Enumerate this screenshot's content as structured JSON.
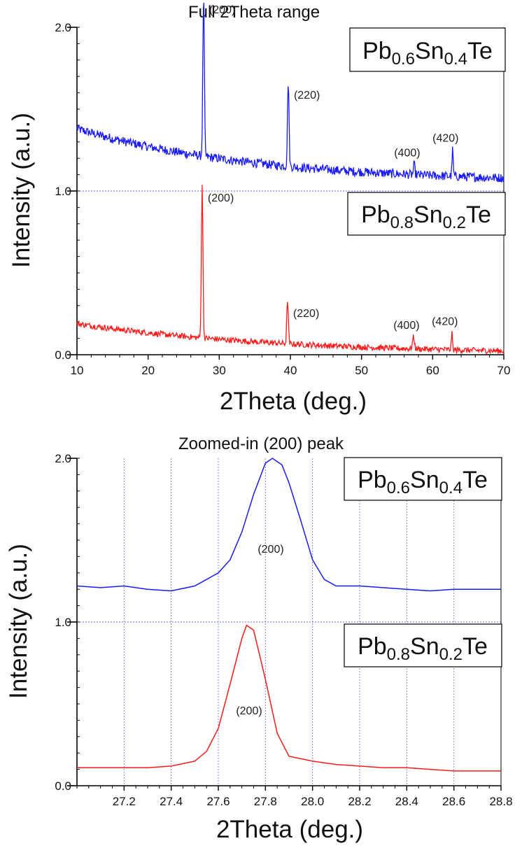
{
  "chart_data": [
    {
      "type": "line",
      "title": "Full 2Theta range",
      "xlabel": "2Theta (deg.)",
      "ylabel": "Intensity (a.u.)",
      "xlim": [
        10,
        70
      ],
      "ylim": [
        0,
        2
      ],
      "xticks": [
        "10",
        "20",
        "30",
        "40",
        "50",
        "60",
        "70"
      ],
      "yticks": [
        "0.0",
        "1.0",
        "2.0"
      ],
      "reference_lines": [
        1.0
      ],
      "vertical_grid": false,
      "series": [
        {
          "sample": {
            "base": "Pb",
            "a": "0.6",
            "mid": "Sn",
            "b": "0.4",
            "end": "Te"
          },
          "color": "#1a1aff",
          "offset": 1.0,
          "background": {
            "start": 0.38,
            "end": 0.05,
            "decay": 0.04
          },
          "noise": 0.028,
          "peaks": [
            {
              "label": "(200)",
              "x": 27.8,
              "height": 0.98,
              "width": 0.15
            },
            {
              "label": "(220)",
              "x": 39.7,
              "height": 0.52,
              "width": 0.15
            },
            {
              "label": "(400)",
              "x": 57.4,
              "height": 0.06,
              "width": 0.15
            },
            {
              "label": "(420)",
              "x": 62.8,
              "height": 0.16,
              "width": 0.12
            }
          ]
        },
        {
          "sample": {
            "base": "Pb",
            "a": "0.8",
            "mid": "Sn",
            "b": "0.2",
            "end": "Te"
          },
          "color": "#ff1a1a",
          "offset": 0.0,
          "background": {
            "start": 0.19,
            "end": 0.0,
            "decay": 0.035
          },
          "noise": 0.018,
          "peaks": [
            {
              "label": "(200)",
              "x": 27.6,
              "height": 0.94,
              "width": 0.15
            },
            {
              "label": "(220)",
              "x": 39.6,
              "height": 0.27,
              "width": 0.15
            },
            {
              "label": "(400)",
              "x": 57.3,
              "height": 0.07,
              "width": 0.2
            },
            {
              "label": "(420)",
              "x": 62.7,
              "height": 0.1,
              "width": 0.12
            }
          ]
        }
      ]
    },
    {
      "type": "line",
      "title": "Zoomed-in (200) peak",
      "xlabel": "2Theta (deg.)",
      "ylabel": "Intensity (a.u.)",
      "xlim": [
        27.0,
        28.8
      ],
      "ylim": [
        0,
        2
      ],
      "xticks": [
        "27.2",
        "27.4",
        "27.6",
        "27.8",
        "28.0",
        "28.2",
        "28.4",
        "28.6",
        "28.8"
      ],
      "yticks": [
        "0.0",
        "1.0",
        "2.0"
      ],
      "reference_lines": [
        1.0
      ],
      "vertical_grid": true,
      "series": [
        {
          "sample": {
            "base": "Pb",
            "a": "0.6",
            "mid": "Sn",
            "b": "0.4",
            "end": "Te"
          },
          "color": "#1a1aff",
          "peak_label": "(200)",
          "points": [
            [
              27.0,
              1.22
            ],
            [
              27.1,
              1.21
            ],
            [
              27.2,
              1.22
            ],
            [
              27.3,
              1.2
            ],
            [
              27.4,
              1.19
            ],
            [
              27.5,
              1.22
            ],
            [
              27.55,
              1.26
            ],
            [
              27.6,
              1.3
            ],
            [
              27.65,
              1.38
            ],
            [
              27.7,
              1.55
            ],
            [
              27.75,
              1.78
            ],
            [
              27.8,
              1.97
            ],
            [
              27.83,
              2.0
            ],
            [
              27.87,
              1.96
            ],
            [
              27.9,
              1.85
            ],
            [
              27.95,
              1.62
            ],
            [
              28.0,
              1.38
            ],
            [
              28.05,
              1.26
            ],
            [
              28.1,
              1.22
            ],
            [
              28.2,
              1.22
            ],
            [
              28.3,
              1.21
            ],
            [
              28.4,
              1.2
            ],
            [
              28.5,
              1.19
            ],
            [
              28.6,
              1.2
            ],
            [
              28.7,
              1.2
            ],
            [
              28.8,
              1.2
            ]
          ]
        },
        {
          "sample": {
            "base": "Pb",
            "a": "0.8",
            "mid": "Sn",
            "b": "0.2",
            "end": "Te"
          },
          "color": "#ff1a1a",
          "peak_label": "(200)",
          "points": [
            [
              27.0,
              0.11
            ],
            [
              27.1,
              0.11
            ],
            [
              27.2,
              0.11
            ],
            [
              27.3,
              0.11
            ],
            [
              27.4,
              0.12
            ],
            [
              27.5,
              0.15
            ],
            [
              27.55,
              0.21
            ],
            [
              27.6,
              0.35
            ],
            [
              27.65,
              0.62
            ],
            [
              27.7,
              0.9
            ],
            [
              27.72,
              0.98
            ],
            [
              27.75,
              0.95
            ],
            [
              27.8,
              0.65
            ],
            [
              27.85,
              0.32
            ],
            [
              27.9,
              0.18
            ],
            [
              28.0,
              0.15
            ],
            [
              28.1,
              0.13
            ],
            [
              28.2,
              0.12
            ],
            [
              28.3,
              0.11
            ],
            [
              28.4,
              0.11
            ],
            [
              28.5,
              0.1
            ],
            [
              28.6,
              0.09
            ],
            [
              28.7,
              0.09
            ],
            [
              28.8,
              0.09
            ]
          ]
        }
      ]
    }
  ]
}
